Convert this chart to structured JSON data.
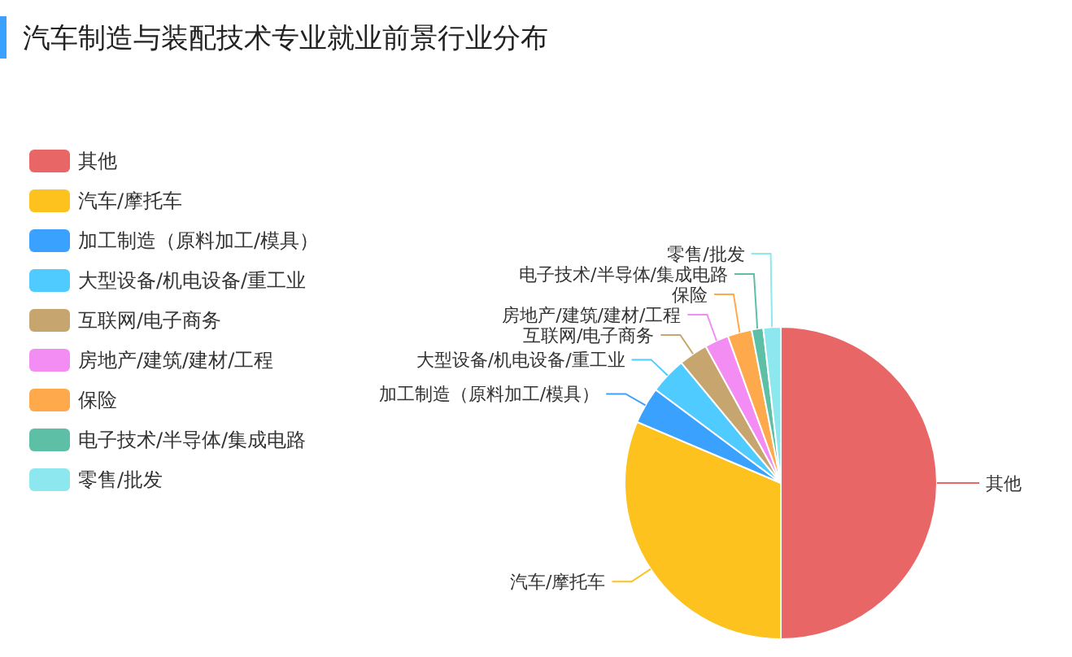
{
  "chart_data": {
    "type": "pie",
    "title": "汽车制造与装配技术专业就业前景行业分布",
    "categories": [
      "其他",
      "汽车/摩托车",
      "加工制造（原料加工/模具）",
      "大型设备/机电设备/重工业",
      "互联网/电子商务",
      "房地产/建筑/建材/工程",
      "保险",
      "电子技术/半导体/集成电路",
      "零售/批发"
    ],
    "values": [
      50,
      31.4,
      3.8,
      3.8,
      3,
      2.5,
      2.5,
      1.2,
      1.8
    ],
    "colors": [
      "#e96666",
      "#fdc21e",
      "#3ba1ff",
      "#4fcbff",
      "#c6a56e",
      "#f38df3",
      "#ffa94d",
      "#5ebfa7",
      "#8de7ef"
    ],
    "legend": "left"
  }
}
